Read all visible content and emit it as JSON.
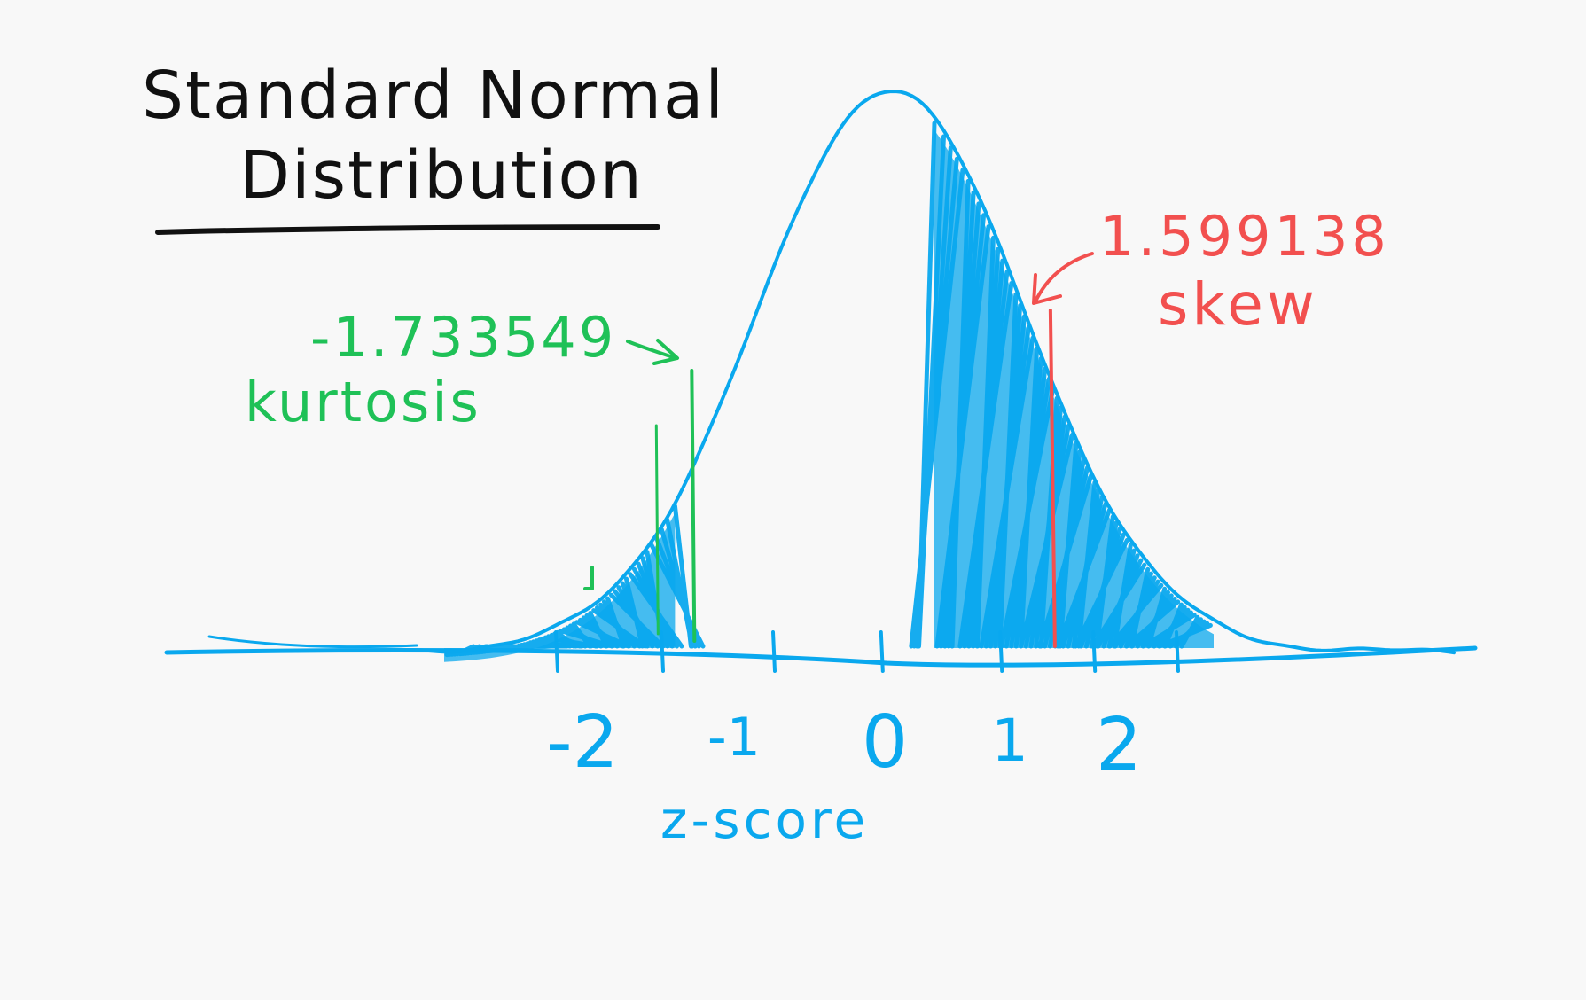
{
  "title": {
    "line1": "Standard Normal",
    "line2": "Distribution"
  },
  "axis": {
    "label": "z-score",
    "ticks": [
      "-2",
      "-1",
      "0",
      "1",
      "2"
    ]
  },
  "annotations": {
    "kurtosis": {
      "value": "-1.733549",
      "label": "kurtosis",
      "z": -1.733549
    },
    "skew": {
      "value": "1.599138",
      "label": "skew",
      "z": 1.599138
    }
  },
  "colors": {
    "curve": "#0aa8ee",
    "kurtosis": "#1fc157",
    "skew": "#f2504f",
    "ink": "#111111",
    "background": "#f8f8f8"
  }
}
